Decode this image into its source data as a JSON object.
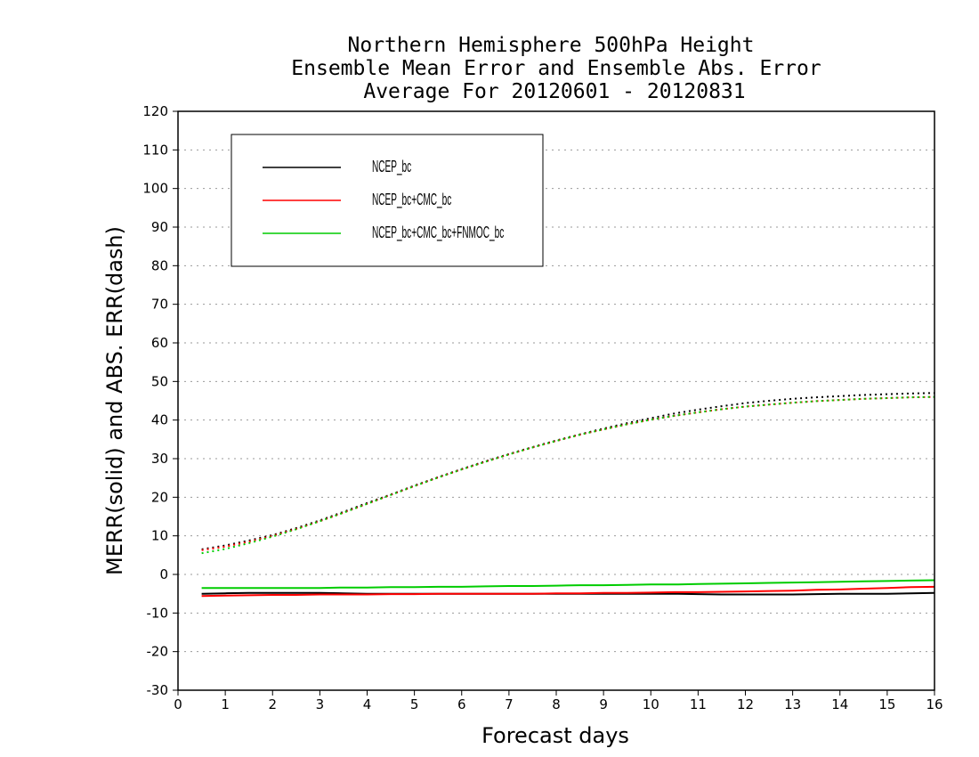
{
  "chart_data": {
    "type": "line",
    "title": [
      "Northern Hemisphere 500hPa Height",
      "Ensemble Mean Error and Ensemble Abs. Error",
      "Average For 20120601 - 20120831"
    ],
    "xlabel": "Forecast days",
    "ylabel": "MERR(solid) and ABS. ERR(dash)",
    "xlim": [
      0,
      16
    ],
    "ylim": [
      -30,
      120
    ],
    "xticks": [
      "0",
      "1",
      "2",
      "3",
      "4",
      "5",
      "6",
      "7",
      "8",
      "9",
      "10",
      "11",
      "12",
      "13",
      "14",
      "15",
      "16"
    ],
    "yticks": [
      "120",
      "110",
      "100",
      "90",
      "80",
      "70",
      "60",
      "50",
      "40",
      "30",
      "20",
      "10",
      "0",
      "-10",
      "-20",
      "-30"
    ],
    "grid": "dotted horizontal",
    "legend_position": "top-left",
    "x": [
      0.5,
      1,
      1.5,
      2,
      2.5,
      3,
      3.5,
      4,
      4.5,
      5,
      5.5,
      6,
      6.5,
      7,
      7.5,
      8,
      8.5,
      9,
      9.5,
      10,
      10.5,
      11,
      11.5,
      12,
      12.5,
      13,
      13.5,
      14,
      14.5,
      15,
      15.5,
      16
    ],
    "series": [
      {
        "name": "NCEP_bc",
        "color": "#000000",
        "merr": [
          -5,
          -4.9,
          -4.8,
          -4.8,
          -4.8,
          -4.8,
          -4.9,
          -5,
          -5,
          -5,
          -5,
          -5,
          -5,
          -5,
          -5,
          -5,
          -5,
          -5,
          -5,
          -5,
          -5,
          -5.1,
          -5.2,
          -5.2,
          -5.2,
          -5.2,
          -5.1,
          -5,
          -5,
          -5,
          -4.9,
          -4.8
        ],
        "abs_err": [
          6.5,
          7.5,
          8.8,
          10.2,
          12,
          14,
          16.2,
          18.5,
          20.7,
          23,
          25.2,
          27.3,
          29.3,
          31.2,
          33,
          34.7,
          36.3,
          37.8,
          39.2,
          40.5,
          41.7,
          42.7,
          43.6,
          44.4,
          45,
          45.5,
          45.9,
          46.2,
          46.5,
          46.7,
          46.9,
          47
        ]
      },
      {
        "name": "NCEP_bc+CMC_bc",
        "color": "#ff0000",
        "merr": [
          -5.6,
          -5.5,
          -5.4,
          -5.3,
          -5.3,
          -5.2,
          -5.2,
          -5.2,
          -5.1,
          -5.1,
          -5,
          -5,
          -5,
          -5,
          -5,
          -4.9,
          -4.9,
          -4.8,
          -4.8,
          -4.7,
          -4.6,
          -4.6,
          -4.5,
          -4.4,
          -4.3,
          -4.2,
          -4,
          -3.9,
          -3.7,
          -3.5,
          -3.3,
          -3.2
        ],
        "abs_err": [
          6.3,
          7.2,
          8.5,
          10,
          11.8,
          13.8,
          16,
          18.3,
          20.6,
          22.9,
          25.1,
          27.2,
          29.2,
          31.1,
          32.9,
          34.6,
          36.2,
          37.6,
          38.9,
          40.1,
          41.1,
          42,
          42.8,
          43.5,
          44,
          44.5,
          44.9,
          45.2,
          45.5,
          45.7,
          45.9,
          46
        ]
      },
      {
        "name": "NCEP_bc+CMC_bc+FNMOC_bc",
        "color": "#00cc00",
        "merr": [
          -3.5,
          -3.5,
          -3.5,
          -3.5,
          -3.5,
          -3.5,
          -3.4,
          -3.4,
          -3.3,
          -3.3,
          -3.2,
          -3.2,
          -3.1,
          -3,
          -3,
          -2.9,
          -2.8,
          -2.8,
          -2.7,
          -2.6,
          -2.6,
          -2.5,
          -2.4,
          -2.3,
          -2.2,
          -2.1,
          -2,
          -1.9,
          -1.8,
          -1.7,
          -1.6,
          -1.5
        ],
        "abs_err": [
          5.5,
          6.6,
          8.1,
          9.8,
          11.7,
          13.8,
          16,
          18.3,
          20.6,
          22.9,
          25.1,
          27.2,
          29.2,
          31.1,
          32.9,
          34.6,
          36.2,
          37.6,
          38.9,
          40.1,
          41.1,
          42,
          42.8,
          43.5,
          44,
          44.5,
          44.9,
          45.2,
          45.5,
          45.7,
          45.9,
          46
        ]
      }
    ]
  }
}
